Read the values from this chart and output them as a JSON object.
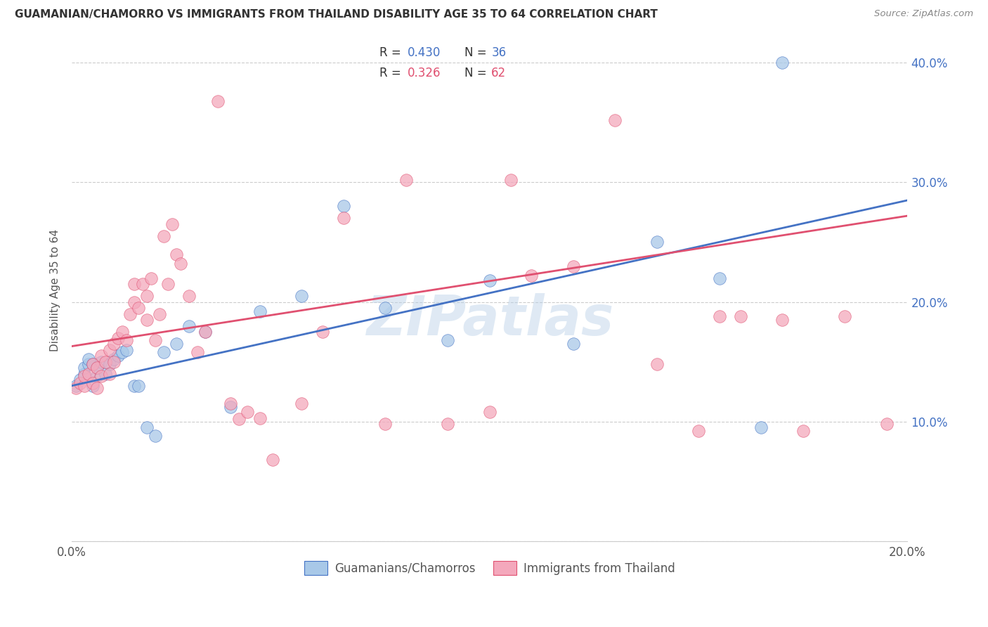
{
  "title": "GUAMANIAN/CHAMORRO VS IMMIGRANTS FROM THAILAND DISABILITY AGE 35 TO 64 CORRELATION CHART",
  "source": "Source: ZipAtlas.com",
  "ylabel": "Disability Age 35 to 64",
  "x_min": 0.0,
  "x_max": 0.2,
  "y_min": 0.0,
  "y_max": 0.42,
  "blue_R": 0.43,
  "blue_N": 36,
  "pink_R": 0.326,
  "pink_N": 62,
  "blue_color": "#a8c8e8",
  "pink_color": "#f4a8bc",
  "blue_line_color": "#4472c4",
  "pink_line_color": "#e05070",
  "blue_label": "Guamanians/Chamorros",
  "pink_label": "Immigrants from Thailand",
  "watermark": "ZIPatlas",
  "blue_scatter_x": [
    0.001,
    0.002,
    0.003,
    0.003,
    0.004,
    0.004,
    0.005,
    0.005,
    0.006,
    0.006,
    0.007,
    0.008,
    0.009,
    0.01,
    0.011,
    0.012,
    0.013,
    0.015,
    0.016,
    0.018,
    0.02,
    0.022,
    0.025,
    0.028,
    0.032,
    0.038,
    0.045,
    0.055,
    0.065,
    0.075,
    0.09,
    0.1,
    0.12,
    0.14,
    0.155,
    0.165
  ],
  "blue_scatter_y": [
    0.13,
    0.135,
    0.14,
    0.145,
    0.148,
    0.152,
    0.13,
    0.148,
    0.138,
    0.145,
    0.15,
    0.14,
    0.148,
    0.152,
    0.155,
    0.158,
    0.16,
    0.13,
    0.13,
    0.095,
    0.088,
    0.158,
    0.165,
    0.18,
    0.175,
    0.112,
    0.192,
    0.205,
    0.28,
    0.195,
    0.168,
    0.218,
    0.165,
    0.25,
    0.22,
    0.095
  ],
  "pink_scatter_x": [
    0.001,
    0.002,
    0.003,
    0.003,
    0.004,
    0.005,
    0.005,
    0.006,
    0.006,
    0.007,
    0.007,
    0.008,
    0.009,
    0.009,
    0.01,
    0.01,
    0.011,
    0.012,
    0.013,
    0.014,
    0.015,
    0.015,
    0.016,
    0.017,
    0.018,
    0.018,
    0.019,
    0.02,
    0.021,
    0.022,
    0.023,
    0.024,
    0.025,
    0.026,
    0.028,
    0.03,
    0.032,
    0.035,
    0.038,
    0.04,
    0.042,
    0.045,
    0.048,
    0.055,
    0.06,
    0.065,
    0.075,
    0.08,
    0.09,
    0.1,
    0.105,
    0.11,
    0.12,
    0.13,
    0.14,
    0.15,
    0.155,
    0.16,
    0.17,
    0.175,
    0.185,
    0.195
  ],
  "pink_scatter_y": [
    0.128,
    0.132,
    0.13,
    0.138,
    0.14,
    0.132,
    0.148,
    0.128,
    0.145,
    0.138,
    0.155,
    0.15,
    0.14,
    0.16,
    0.15,
    0.165,
    0.17,
    0.175,
    0.168,
    0.19,
    0.2,
    0.215,
    0.195,
    0.215,
    0.185,
    0.205,
    0.22,
    0.168,
    0.19,
    0.255,
    0.215,
    0.265,
    0.24,
    0.232,
    0.205,
    0.158,
    0.175,
    0.368,
    0.115,
    0.102,
    0.108,
    0.103,
    0.068,
    0.115,
    0.175,
    0.27,
    0.098,
    0.302,
    0.098,
    0.108,
    0.302,
    0.222,
    0.23,
    0.352,
    0.148,
    0.092,
    0.188,
    0.188,
    0.185,
    0.092,
    0.188,
    0.098
  ]
}
